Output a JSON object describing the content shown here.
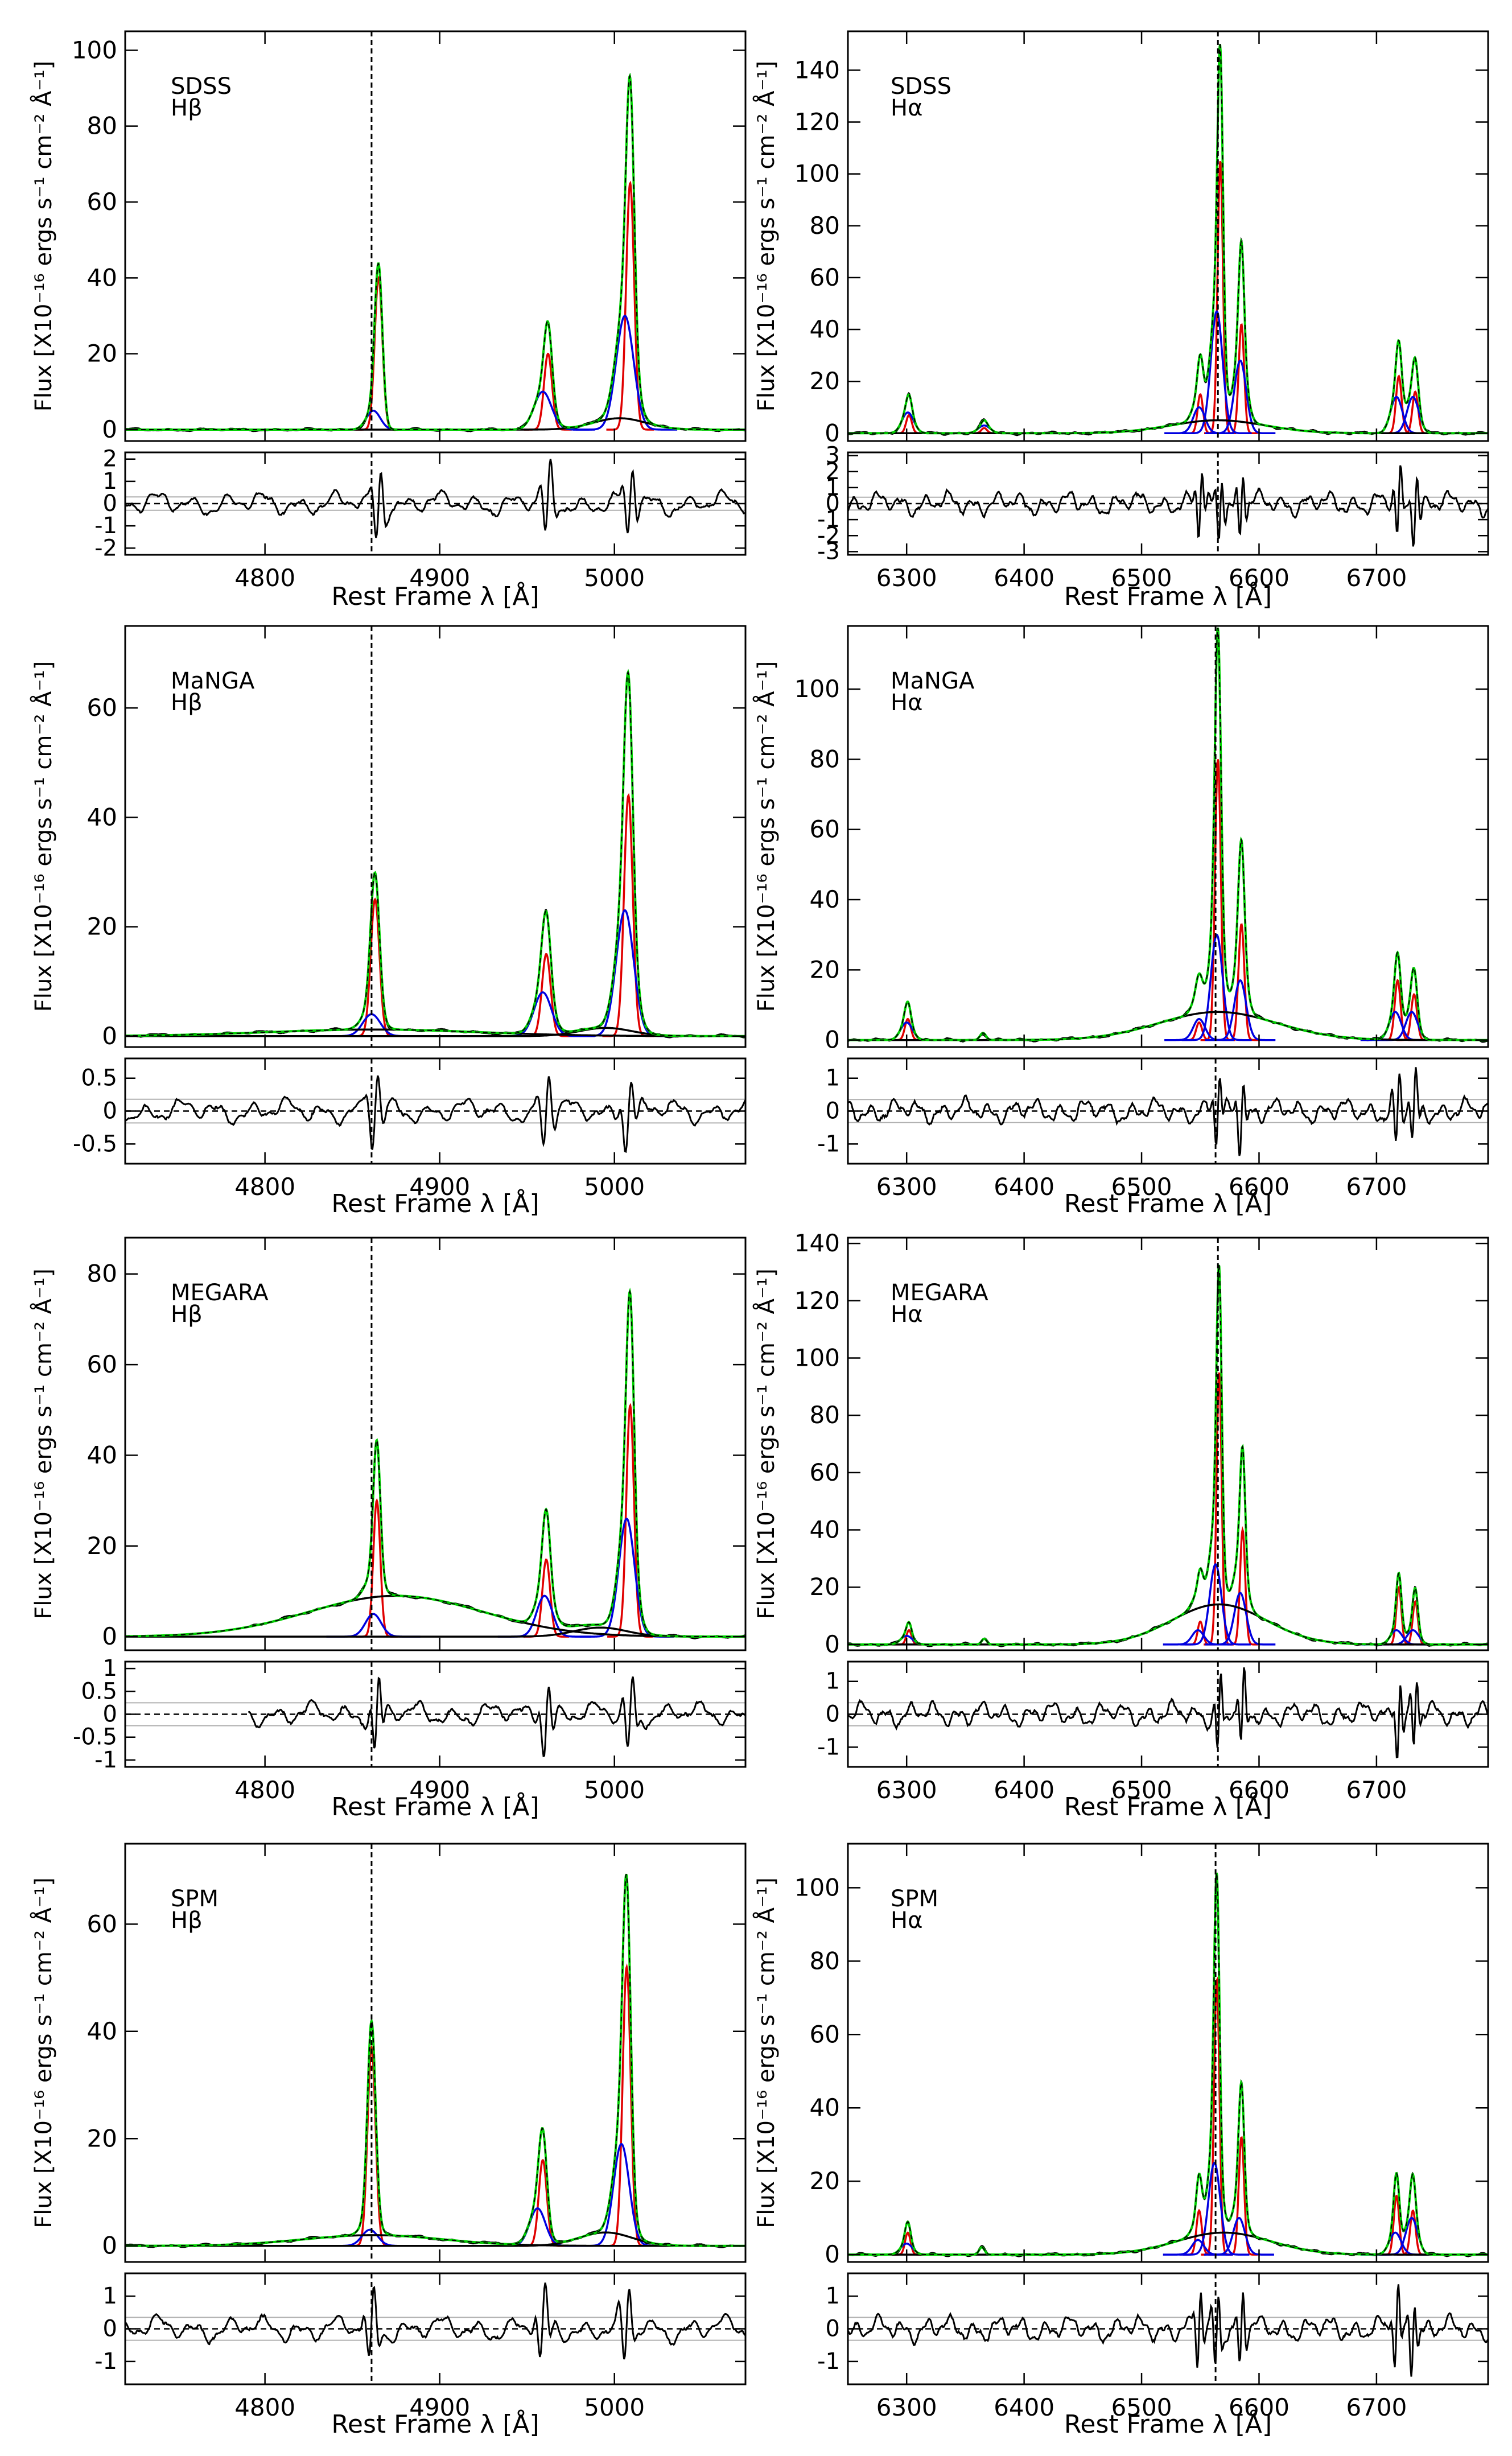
{
  "figure": {
    "xlabel": "Rest Frame λ [Å]",
    "ylabel": "Flux [X10⁻¹⁶ ergs s⁻¹ cm⁻² Å⁻¹]"
  },
  "colors": {
    "data": "#000000",
    "total_fit": "#00d000",
    "narrow": "#e00000",
    "second": "#0000e0",
    "grid": "#b0b0b0"
  },
  "chart_data": [
    {
      "id": "sdss-hb",
      "type": "line",
      "instrument": "SDSS",
      "line": "Hβ",
      "xlim": [
        4720,
        5075
      ],
      "ylim": [
        -3,
        105
      ],
      "xticks": [
        4800,
        4900,
        5000
      ],
      "yticks": [
        0,
        20,
        40,
        60,
        80,
        100
      ],
      "vline": 4861,
      "resid_ylim": [
        -2.3,
        2.3
      ],
      "resid_yticks": [
        -2,
        -1,
        0,
        1,
        2
      ],
      "resid_hlines": [
        -0.3,
        0.3
      ],
      "components": [
        {
          "type": "narrow",
          "center": 4865,
          "amp": 40,
          "sigma": 2.2
        },
        {
          "type": "narrow",
          "center": 4962,
          "amp": 20,
          "sigma": 2.3
        },
        {
          "type": "narrow",
          "center": 5009,
          "amp": 65,
          "sigma": 2.3
        },
        {
          "type": "second",
          "center": 4862,
          "amp": 5,
          "sigma": 4
        },
        {
          "type": "second",
          "center": 4959,
          "amp": 10,
          "sigma": 5
        },
        {
          "type": "second",
          "center": 5006,
          "amp": 30,
          "sigma": 5
        },
        {
          "type": "broad",
          "center": 5003,
          "amp": 3,
          "sigma": 15
        }
      ]
    },
    {
      "id": "sdss-ha",
      "type": "line",
      "instrument": "SDSS",
      "line": "Hα",
      "xlim": [
        6250,
        6795
      ],
      "ylim": [
        -3,
        155
      ],
      "xticks": [
        6300,
        6400,
        6500,
        6600,
        6700
      ],
      "yticks": [
        0,
        20,
        40,
        60,
        80,
        100,
        120,
        140
      ],
      "vline": 6565,
      "resid_ylim": [
        -3.2,
        3.2
      ],
      "resid_yticks": [
        -3,
        -2,
        -1,
        0,
        1,
        2,
        3
      ],
      "resid_hlines": [
        -0.4,
        0.4
      ],
      "components": [
        {
          "type": "narrow",
          "center": 6567,
          "amp": 105,
          "sigma": 2.3
        },
        {
          "type": "narrow",
          "center": 6550,
          "amp": 15,
          "sigma": 2.3
        },
        {
          "type": "narrow",
          "center": 6585,
          "amp": 42,
          "sigma": 2.3
        },
        {
          "type": "narrow",
          "center": 6719,
          "amp": 22,
          "sigma": 2.4
        },
        {
          "type": "narrow",
          "center": 6733,
          "amp": 16,
          "sigma": 2.4
        },
        {
          "type": "narrow",
          "center": 6302,
          "amp": 7,
          "sigma": 2.4
        },
        {
          "type": "narrow",
          "center": 6366,
          "amp": 2,
          "sigma": 2.4
        },
        {
          "type": "second",
          "center": 6564,
          "amp": 47,
          "sigma": 5
        },
        {
          "type": "second",
          "center": 6584,
          "amp": 28,
          "sigma": 5
        },
        {
          "type": "second",
          "center": 6549,
          "amp": 10,
          "sigma": 5
        },
        {
          "type": "second",
          "center": 6717,
          "amp": 14,
          "sigma": 5
        },
        {
          "type": "second",
          "center": 6731,
          "amp": 14,
          "sigma": 5
        },
        {
          "type": "second",
          "center": 6301,
          "amp": 8,
          "sigma": 5
        },
        {
          "type": "second",
          "center": 6366,
          "amp": 3,
          "sigma": 5
        },
        {
          "type": "broad",
          "center": 6565,
          "amp": 5,
          "sigma": 40
        }
      ]
    },
    {
      "id": "manga-hb",
      "type": "line",
      "instrument": "MaNGA",
      "line": "Hβ",
      "xlim": [
        4720,
        5075
      ],
      "ylim": [
        -2,
        75
      ],
      "xticks": [
        4800,
        4900,
        5000
      ],
      "yticks": [
        0,
        20,
        40,
        60
      ],
      "vline": 4861,
      "resid_ylim": [
        -0.8,
        0.8
      ],
      "resid_yticks": [
        -0.5,
        0,
        0.5
      ],
      "resid_hlines": [
        -0.18,
        0.18
      ],
      "components": [
        {
          "type": "narrow",
          "center": 4863,
          "amp": 25,
          "sigma": 2.5
        },
        {
          "type": "narrow",
          "center": 4961,
          "amp": 15,
          "sigma": 2.5
        },
        {
          "type": "narrow",
          "center": 5008,
          "amp": 44,
          "sigma": 2.5
        },
        {
          "type": "second",
          "center": 4861,
          "amp": 4,
          "sigma": 5
        },
        {
          "type": "second",
          "center": 4959,
          "amp": 8,
          "sigma": 5
        },
        {
          "type": "second",
          "center": 5006,
          "amp": 23,
          "sigma": 5
        },
        {
          "type": "broad",
          "center": 4995,
          "amp": 1.5,
          "sigma": 15
        },
        {
          "type": "broad",
          "center": 4862,
          "amp": 1.2,
          "sigma": 60
        }
      ]
    },
    {
      "id": "manga-ha",
      "type": "line",
      "instrument": "MaNGA",
      "line": "Hα",
      "xlim": [
        6250,
        6795
      ],
      "ylim": [
        -2,
        118
      ],
      "xticks": [
        6300,
        6400,
        6500,
        6600,
        6700
      ],
      "yticks": [
        0,
        20,
        40,
        60,
        80,
        100
      ],
      "vline": 6563,
      "resid_ylim": [
        -1.6,
        1.6
      ],
      "resid_yticks": [
        -1,
        0,
        1
      ],
      "resid_hlines": [
        -0.35,
        0.35
      ],
      "components": [
        {
          "type": "narrow",
          "center": 6565,
          "amp": 80,
          "sigma": 2.5
        },
        {
          "type": "narrow",
          "center": 6549,
          "amp": 5,
          "sigma": 2.5
        },
        {
          "type": "narrow",
          "center": 6585,
          "amp": 33,
          "sigma": 2.5
        },
        {
          "type": "narrow",
          "center": 6718,
          "amp": 17,
          "sigma": 2.5
        },
        {
          "type": "narrow",
          "center": 6732,
          "amp": 13,
          "sigma": 2.5
        },
        {
          "type": "narrow",
          "center": 6301,
          "amp": 6,
          "sigma": 2.5
        },
        {
          "type": "narrow",
          "center": 6365,
          "amp": 2,
          "sigma": 2.5
        },
        {
          "type": "second",
          "center": 6564,
          "amp": 30,
          "sigma": 5
        },
        {
          "type": "second",
          "center": 6584,
          "amp": 17,
          "sigma": 5
        },
        {
          "type": "second",
          "center": 6549,
          "amp": 6,
          "sigma": 5
        },
        {
          "type": "second",
          "center": 6716,
          "amp": 8,
          "sigma": 5
        },
        {
          "type": "second",
          "center": 6730,
          "amp": 8,
          "sigma": 5
        },
        {
          "type": "second",
          "center": 6300,
          "amp": 5,
          "sigma": 5
        },
        {
          "type": "broad",
          "center": 6565,
          "amp": 8,
          "sigma": 50
        }
      ]
    },
    {
      "id": "megara-hb",
      "type": "line",
      "instrument": "MEGARA",
      "line": "Hβ",
      "xlim": [
        4720,
        5075
      ],
      "ylim": [
        -3,
        88
      ],
      "xticks": [
        4800,
        4900,
        5000
      ],
      "yticks": [
        0,
        20,
        40,
        60,
        80
      ],
      "vline": 4861,
      "resid_ylim": [
        -1.15,
        1.15
      ],
      "resid_yticks": [
        -1,
        -0.5,
        0,
        0.5,
        1
      ],
      "resid_ticklabels": [
        "-1",
        "-0.5",
        "0",
        "0.5",
        "1"
      ],
      "resid_hlines": [
        -0.25,
        0.25
      ],
      "data_start": 4790,
      "components": [
        {
          "type": "narrow",
          "center": 4864,
          "amp": 30,
          "sigma": 2.0
        },
        {
          "type": "narrow",
          "center": 4961,
          "amp": 17,
          "sigma": 2.2
        },
        {
          "type": "narrow",
          "center": 5009,
          "amp": 51,
          "sigma": 2.2
        },
        {
          "type": "second",
          "center": 4862,
          "amp": 5,
          "sigma": 4.5
        },
        {
          "type": "second",
          "center": 4960,
          "amp": 9,
          "sigma": 4.5
        },
        {
          "type": "second",
          "center": 5007,
          "amp": 26,
          "sigma": 4.5
        },
        {
          "type": "broad",
          "center": 4992,
          "amp": 2,
          "sigma": 15
        },
        {
          "type": "broad",
          "center": 4875,
          "amp": 9,
          "sigma": 50
        }
      ]
    },
    {
      "id": "megara-ha",
      "type": "line",
      "instrument": "MEGARA",
      "line": "Hα",
      "xlim": [
        6250,
        6795
      ],
      "ylim": [
        -2,
        142
      ],
      "xticks": [
        6300,
        6400,
        6500,
        6600,
        6700
      ],
      "yticks": [
        0,
        20,
        40,
        60,
        80,
        100,
        120,
        140
      ],
      "vline": 6565,
      "resid_ylim": [
        -1.6,
        1.6
      ],
      "resid_yticks": [
        -1,
        0,
        1
      ],
      "resid_hlines": [
        -0.35,
        0.35
      ],
      "components": [
        {
          "type": "narrow",
          "center": 6566,
          "amp": 95,
          "sigma": 2.2
        },
        {
          "type": "narrow",
          "center": 6550,
          "amp": 8,
          "sigma": 2.2
        },
        {
          "type": "narrow",
          "center": 6586,
          "amp": 40,
          "sigma": 2.2
        },
        {
          "type": "narrow",
          "center": 6719,
          "amp": 20,
          "sigma": 2.2
        },
        {
          "type": "narrow",
          "center": 6733,
          "amp": 15,
          "sigma": 2.2
        },
        {
          "type": "narrow",
          "center": 6302,
          "amp": 5,
          "sigma": 2.2
        },
        {
          "type": "narrow",
          "center": 6366,
          "amp": 2,
          "sigma": 2.2
        },
        {
          "type": "second",
          "center": 6563,
          "amp": 28,
          "sigma": 5
        },
        {
          "type": "second",
          "center": 6584,
          "amp": 18,
          "sigma": 5
        },
        {
          "type": "second",
          "center": 6548,
          "amp": 5,
          "sigma": 5
        },
        {
          "type": "second",
          "center": 6717,
          "amp": 5,
          "sigma": 5
        },
        {
          "type": "second",
          "center": 6731,
          "amp": 5,
          "sigma": 5
        },
        {
          "type": "second",
          "center": 6300,
          "amp": 3,
          "sigma": 5
        },
        {
          "type": "broad",
          "center": 6566,
          "amp": 14,
          "sigma": 40
        }
      ]
    },
    {
      "id": "spm-hb",
      "type": "line",
      "instrument": "SPM",
      "line": "Hβ",
      "xlim": [
        4720,
        5075
      ],
      "ylim": [
        -3,
        75
      ],
      "xticks": [
        4800,
        4900,
        5000
      ],
      "yticks": [
        0,
        20,
        40,
        60
      ],
      "vline": 4861,
      "resid_ylim": [
        -1.7,
        1.7
      ],
      "resid_yticks": [
        -1,
        0,
        1
      ],
      "resid_hlines": [
        -0.35,
        0.35
      ],
      "components": [
        {
          "type": "narrow",
          "center": 4861,
          "amp": 37,
          "sigma": 2.3
        },
        {
          "type": "narrow",
          "center": 4959,
          "amp": 16,
          "sigma": 2.3
        },
        {
          "type": "narrow",
          "center": 5007,
          "amp": 52,
          "sigma": 2.3
        },
        {
          "type": "second",
          "center": 4860,
          "amp": 3,
          "sigma": 4.5
        },
        {
          "type": "second",
          "center": 4956,
          "amp": 7,
          "sigma": 4.5
        },
        {
          "type": "second",
          "center": 5004,
          "amp": 19,
          "sigma": 4.5
        },
        {
          "type": "broad",
          "center": 4995,
          "amp": 2.5,
          "sigma": 15
        },
        {
          "type": "broad",
          "center": 4862,
          "amp": 2,
          "sigma": 40
        }
      ]
    },
    {
      "id": "spm-ha",
      "type": "line",
      "instrument": "SPM",
      "line": "Hα",
      "xlim": [
        6250,
        6795
      ],
      "ylim": [
        -2,
        112
      ],
      "xticks": [
        6300,
        6400,
        6500,
        6600,
        6700
      ],
      "yticks": [
        0,
        20,
        40,
        60,
        80,
        100
      ],
      "vline": 6563,
      "resid_ylim": [
        -1.7,
        1.7
      ],
      "resid_yticks": [
        -1,
        0,
        1
      ],
      "resid_hlines": [
        -0.35,
        0.35
      ],
      "components": [
        {
          "type": "narrow",
          "center": 6564,
          "amp": 75,
          "sigma": 2.3
        },
        {
          "type": "narrow",
          "center": 6549,
          "amp": 12,
          "sigma": 2.3
        },
        {
          "type": "narrow",
          "center": 6585,
          "amp": 32,
          "sigma": 2.3
        },
        {
          "type": "narrow",
          "center": 6717,
          "amp": 16,
          "sigma": 2.3
        },
        {
          "type": "narrow",
          "center": 6731,
          "amp": 12,
          "sigma": 2.3
        },
        {
          "type": "narrow",
          "center": 6301,
          "amp": 6,
          "sigma": 2.3
        },
        {
          "type": "narrow",
          "center": 6364,
          "amp": 2,
          "sigma": 2.3
        },
        {
          "type": "second",
          "center": 6562,
          "amp": 25,
          "sigma": 5
        },
        {
          "type": "second",
          "center": 6583,
          "amp": 10,
          "sigma": 5
        },
        {
          "type": "second",
          "center": 6548,
          "amp": 4,
          "sigma": 5
        },
        {
          "type": "second",
          "center": 6716,
          "amp": 6,
          "sigma": 5
        },
        {
          "type": "second",
          "center": 6730,
          "amp": 10,
          "sigma": 5
        },
        {
          "type": "second",
          "center": 6300,
          "amp": 3,
          "sigma": 5
        },
        {
          "type": "broad",
          "center": 6570,
          "amp": 6,
          "sigma": 40
        }
      ]
    }
  ]
}
